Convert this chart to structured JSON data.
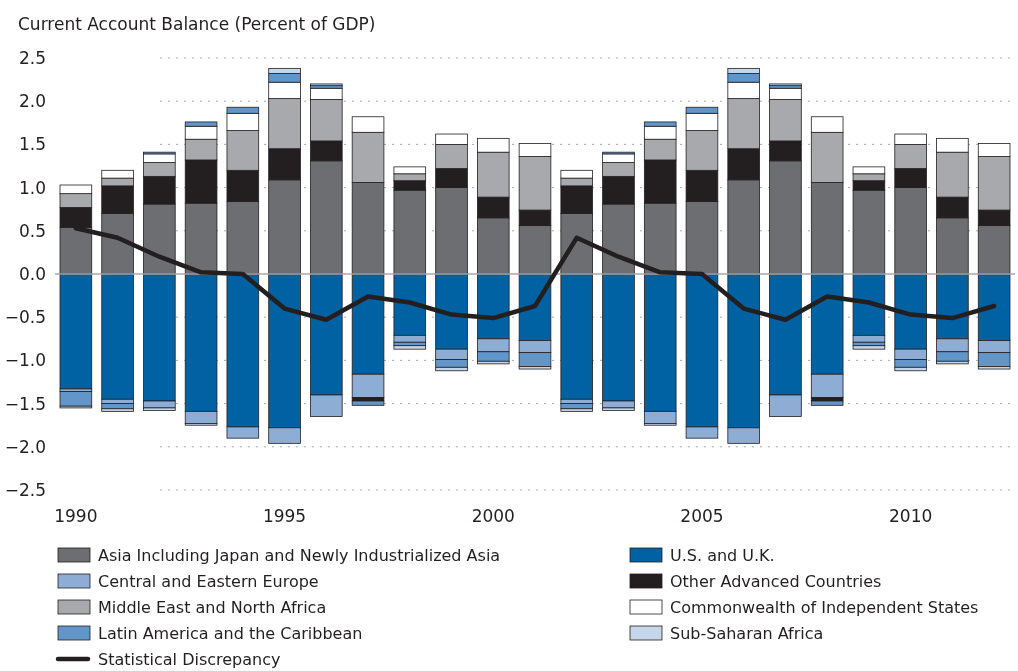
{
  "chart_data": {
    "type": "bar",
    "stacked": true,
    "ylabel": "Current Account Balance (Percent of GDP)",
    "x": [
      1990,
      1991,
      1992,
      1993,
      1994,
      1995,
      1996,
      1997,
      1998,
      1999,
      2000,
      2001,
      2002,
      2003,
      2004,
      2005,
      2006,
      2007,
      2008,
      2009,
      2010,
      2011,
      2012
    ],
    "xlim": [
      1989.5,
      2012.5
    ],
    "xticks": [
      1990,
      1995,
      2000,
      2005,
      2010
    ],
    "ylim": [
      -2.5,
      2.5
    ],
    "yticks": [
      {
        "value": -2.5,
        "label": "−2.5"
      },
      {
        "value": -2,
        "label": "−2.0"
      },
      {
        "value": -1.5,
        "label": "−1.5"
      },
      {
        "value": -1,
        "label": "−1.0"
      },
      {
        "value": -0.5,
        "label": "−0.5"
      },
      {
        "value": 0,
        "label": "0.0"
      },
      {
        "value": 0.5,
        "label": "0.5"
      },
      {
        "value": 1,
        "label": "1.0"
      },
      {
        "value": 1.5,
        "label": "1.5"
      },
      {
        "value": 2,
        "label": "2.0"
      },
      {
        "value": 2.5,
        "label": "2.5"
      }
    ],
    "grid": "y",
    "legend": "bottom",
    "series": [
      {
        "name": "Asia Including Japan and Newly Industrialized Asia",
        "color": "#6d6e71",
        "values": [
          0.54,
          0.7,
          0.81,
          0.82,
          0.84,
          1.09,
          1.31,
          1.06,
          0.97,
          1.0,
          0.65,
          0.56,
          0.7,
          0.81,
          0.82,
          0.84,
          1.09,
          1.31,
          1.06,
          0.97,
          1.0,
          0.65,
          0.56
        ]
      },
      {
        "name": "U.S. and U.K.",
        "color": "#0062a2",
        "values": [
          -1.33,
          -1.45,
          -1.47,
          -1.59,
          -1.77,
          -1.78,
          -1.4,
          -1.16,
          -0.71,
          -0.87,
          -0.75,
          -0.77,
          -1.45,
          -1.47,
          -1.59,
          -1.77,
          -1.78,
          -1.4,
          -1.16,
          -0.71,
          -0.87,
          -0.75,
          -0.77
        ]
      },
      {
        "name": "Central and Eastern Europe",
        "color": "#8eadd4",
        "values": [
          -0.03,
          -0.05,
          -0.08,
          -0.14,
          -0.13,
          -0.18,
          -0.25,
          -0.27,
          -0.08,
          -0.12,
          -0.15,
          -0.14,
          -0.05,
          -0.08,
          -0.14,
          -0.13,
          -0.18,
          -0.25,
          -0.27,
          -0.08,
          -0.12,
          -0.15,
          -0.14
        ]
      },
      {
        "name": "Other Advanced Countries",
        "color": "#231f20",
        "values": [
          0.23,
          0.32,
          0.32,
          0.5,
          0.36,
          0.36,
          0.23,
          -0.04,
          0.11,
          0.22,
          0.24,
          0.18,
          0.32,
          0.32,
          0.5,
          0.36,
          0.36,
          0.23,
          -0.04,
          0.11,
          0.22,
          0.24,
          0.18
        ]
      },
      {
        "name": "Middle East and North Africa",
        "color": "#a7a9ac",
        "values": [
          0.16,
          0.09,
          0.16,
          0.24,
          0.46,
          0.58,
          0.48,
          0.58,
          0.08,
          0.28,
          0.52,
          0.62,
          0.09,
          0.16,
          0.24,
          0.46,
          0.58,
          0.48,
          0.58,
          0.08,
          0.28,
          0.52,
          0.62
        ]
      },
      {
        "name": "Commonwealth of Independent States",
        "color": "#ffffff",
        "values": [
          0.1,
          0.09,
          0.1,
          0.15,
          0.2,
          0.19,
          0.13,
          0.18,
          0.08,
          0.12,
          0.16,
          0.15,
          0.09,
          0.1,
          0.15,
          0.2,
          0.19,
          0.13,
          0.18,
          0.08,
          0.12,
          0.16,
          0.15
        ]
      },
      {
        "name": "Latin America and the Caribbean",
        "color": "#6396c8",
        "values": [
          -0.17,
          -0.06,
          0.02,
          0.05,
          0.07,
          0.1,
          0.03,
          -0.05,
          -0.04,
          -0.09,
          -0.11,
          -0.16,
          -0.06,
          0.02,
          0.05,
          0.07,
          0.1,
          0.03,
          -0.05,
          -0.04,
          -0.09,
          -0.11,
          -0.16
        ]
      },
      {
        "name": "Sub-Saharan Africa",
        "color": "#c5d5ea",
        "values": [
          -0.02,
          -0.03,
          -0.03,
          -0.02,
          null,
          0.06,
          0.02,
          null,
          -0.04,
          -0.04,
          -0.03,
          -0.03,
          -0.03,
          -0.03,
          -0.02,
          null,
          0.06,
          0.02,
          null,
          -0.04,
          -0.04,
          -0.03,
          -0.03
        ]
      },
      {
        "name": "Statistical Discrepancy",
        "type": "line",
        "color": "#231f20",
        "values": [
          0.53,
          0.42,
          0.2,
          0.02,
          0,
          -0.4,
          -0.53,
          -0.26,
          -0.33,
          -0.47,
          -0.51,
          -0.37,
          0.42,
          0.2,
          0.02,
          0,
          -0.4,
          -0.53,
          -0.26,
          -0.33,
          -0.47,
          -0.51,
          -0.37
        ]
      }
    ]
  }
}
